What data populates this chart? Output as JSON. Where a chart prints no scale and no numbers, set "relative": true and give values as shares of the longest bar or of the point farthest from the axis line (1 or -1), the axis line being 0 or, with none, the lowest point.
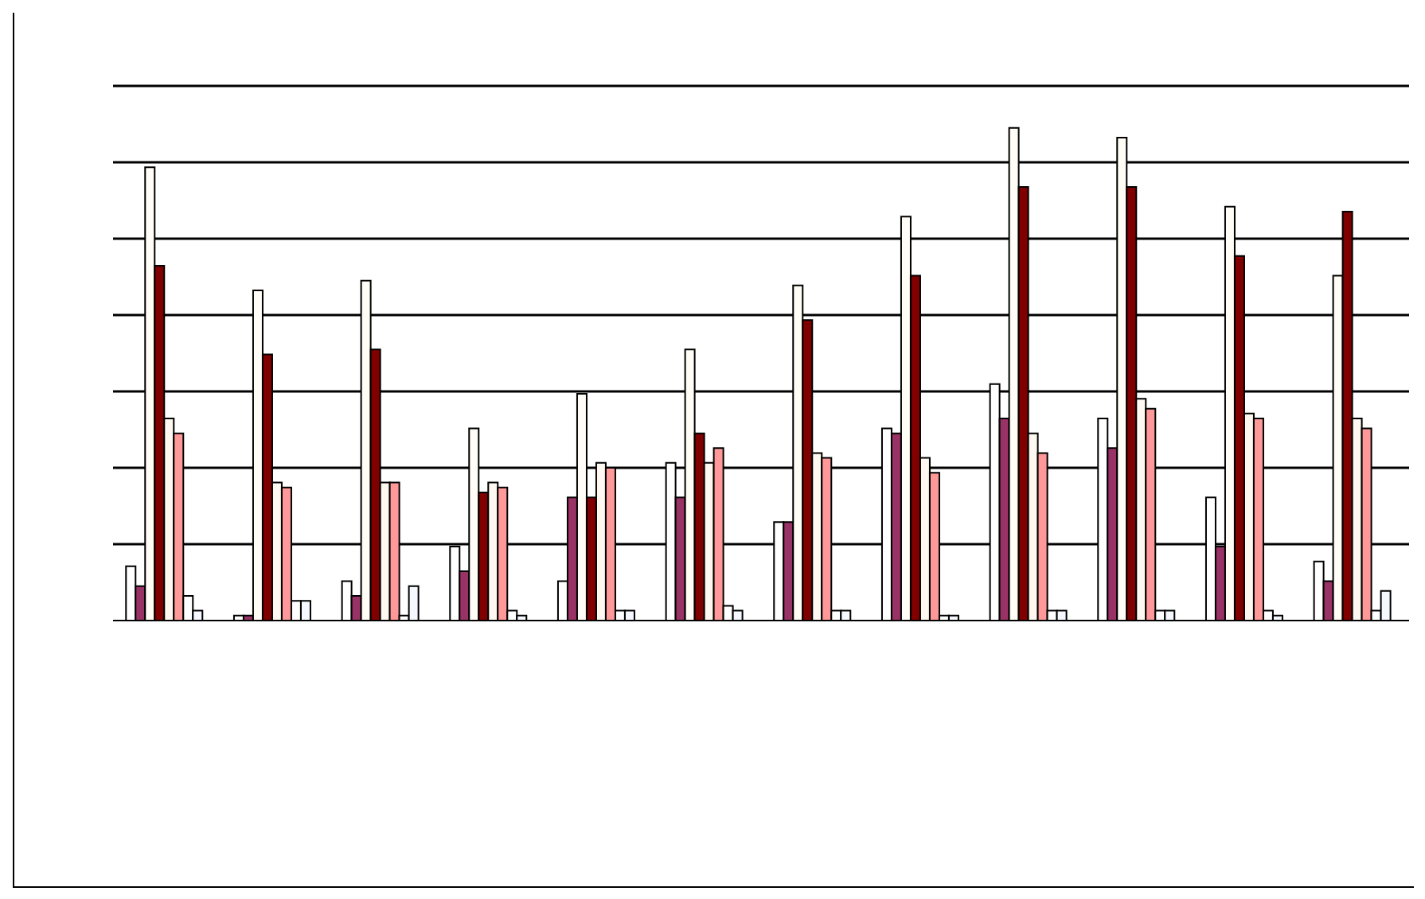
{
  "chart_data": {
    "type": "bar",
    "relative": true,
    "grid": "y",
    "legend": false,
    "categories": [
      null,
      null,
      null,
      null,
      null,
      null,
      null,
      null,
      null,
      null,
      null,
      null
    ],
    "series": [
      {
        "color": "#ffffff",
        "values": [
          0.11,
          0.01,
          0.08,
          0.15,
          0.08,
          0.32,
          0.2,
          0.39,
          0.48,
          0.41,
          0.25,
          0.12
        ]
      },
      {
        "color": "#993366",
        "values": [
          0.07,
          0.01,
          0.05,
          0.1,
          0.25,
          0.25,
          0.2,
          0.38,
          0.41,
          0.35,
          0.15,
          0.08
        ]
      },
      {
        "color": "#fffdf5",
        "values": [
          0.92,
          0.67,
          0.69,
          0.39,
          0.46,
          0.55,
          0.68,
          0.82,
          1,
          0.98,
          0.84,
          0.7
        ]
      },
      {
        "color": "#800000",
        "values": [
          0.72,
          0.54,
          0.55,
          0.26,
          0.25,
          0.38,
          0.61,
          0.7,
          0.88,
          0.88,
          0.74,
          0.83
        ]
      },
      {
        "color": "#fff8f0",
        "values": [
          0.41,
          0.28,
          0.28,
          0.28,
          0.32,
          0.32,
          0.34,
          0.33,
          0.38,
          0.45,
          0.42,
          0.41
        ]
      },
      {
        "color": "#ff9999",
        "values": [
          0.38,
          0.27,
          0.28,
          0.27,
          0.31,
          0.35,
          0.33,
          0.3,
          0.34,
          0.43,
          0.41,
          0.39
        ]
      },
      {
        "color": "#fefefe",
        "values": [
          0.05,
          0.04,
          0.01,
          0.02,
          0.02,
          0.03,
          0.02,
          0.01,
          0.02,
          0.02,
          0.02,
          0.02
        ]
      },
      {
        "color": "#f5f8ff",
        "values": [
          0.02,
          0.04,
          0.07,
          0.01,
          0.02,
          0.02,
          0.02,
          0.01,
          0.02,
          0.02,
          0.01,
          0.06
        ]
      }
    ]
  }
}
